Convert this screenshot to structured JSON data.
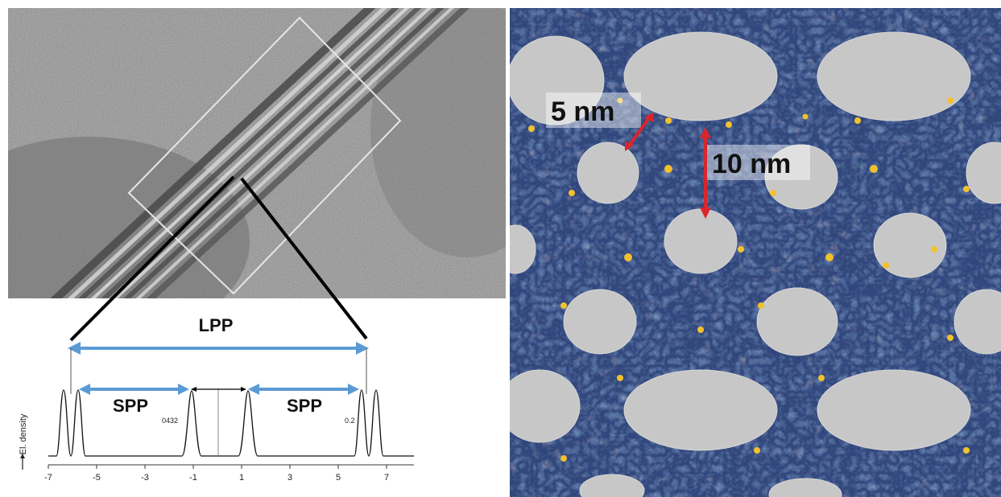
{
  "tem_panel": {
    "bracket_label": "LPP",
    "spp_left": "SPP",
    "spp_right": "SPP",
    "ylabel": "El. density",
    "peak_label_left": "0432",
    "peak_label_right": "0.2",
    "x_ticks": [
      "-7",
      "-5",
      "-3",
      "-1",
      "1",
      "3",
      "5",
      "7"
    ]
  },
  "md_panel": {
    "distance_small": "5 nm",
    "distance_large": "10 nm"
  },
  "colors": {
    "arrow_blue": "#5b9bd5",
    "arrow_red": "#d9262c",
    "lipid_bg": "#283f78",
    "micelle": "#c8c8c8",
    "headgroup": "#f2c12e"
  }
}
